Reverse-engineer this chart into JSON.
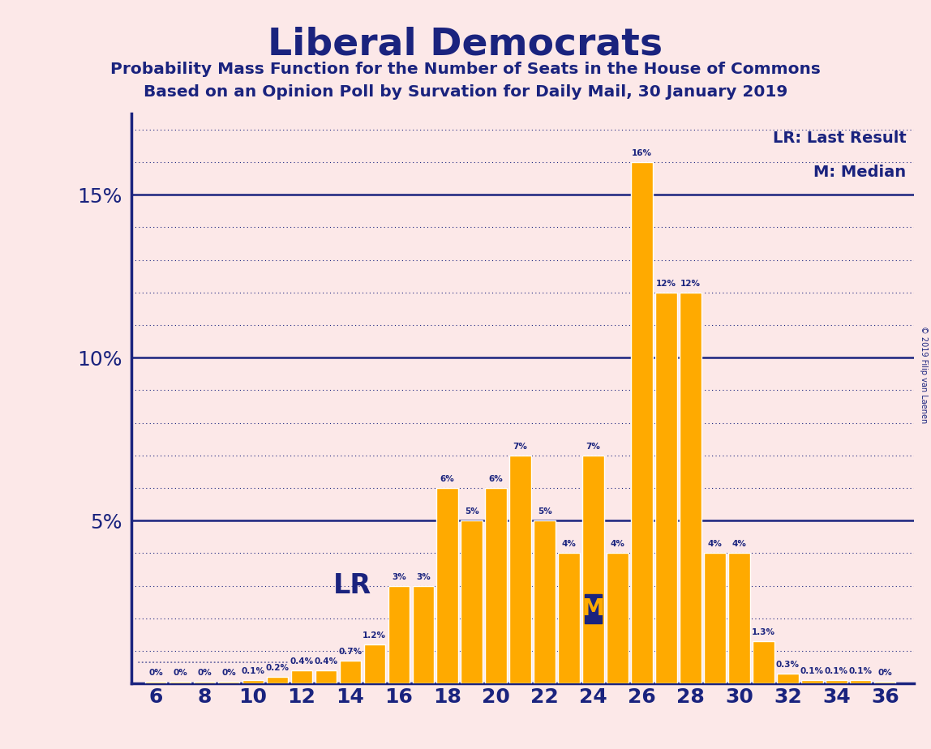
{
  "title": "Liberal Democrats",
  "subtitle1": "Probability Mass Function for the Number of Seats in the House of Commons",
  "subtitle2": "Based on an Opinion Poll by Survation for Daily Mail, 30 January 2019",
  "background_color": "#fce8e8",
  "bar_color": "#FFAA00",
  "bar_edge_color": "#FFFFFF",
  "axis_color": "#1a237e",
  "text_color": "#1a237e",
  "categories": [
    6,
    7,
    8,
    9,
    10,
    11,
    12,
    13,
    14,
    15,
    16,
    17,
    18,
    19,
    20,
    21,
    22,
    23,
    24,
    25,
    26,
    27,
    28,
    29,
    30,
    31,
    32,
    33,
    34,
    35,
    36
  ],
  "values": [
    0.05,
    0.05,
    0.05,
    0.05,
    0.1,
    0.2,
    0.4,
    0.4,
    0.7,
    1.2,
    3.0,
    3.0,
    6.0,
    5.0,
    6.0,
    7.0,
    5.0,
    4.0,
    7.0,
    4.0,
    16.0,
    12.0,
    12.0,
    4.0,
    4.0,
    1.3,
    0.3,
    0.1,
    0.1,
    0.1,
    0.05
  ],
  "value_labels": [
    "0%",
    "0%",
    "0%",
    "0%",
    "0.1%",
    "0.2%",
    "0.4%",
    "0.4%",
    "0.7%",
    "1.2%",
    "3%",
    "3%",
    "6%",
    "5%",
    "6%",
    "7%",
    "5%",
    "4%",
    "7%",
    "4%",
    "16%",
    "12%",
    "12%",
    "4%",
    "4%",
    "1.3%",
    "0.3%",
    "0.1%",
    "0.1%",
    "0.1%",
    "0%"
  ],
  "last_result_seat": 12,
  "median_seat": 24,
  "ylim": [
    0,
    17.5
  ],
  "copyright_text": "© 2019 Filip van Laenen",
  "lr_label": "LR",
  "lr_legend": "LR: Last Result",
  "m_label": "M",
  "m_legend": "M: Median"
}
